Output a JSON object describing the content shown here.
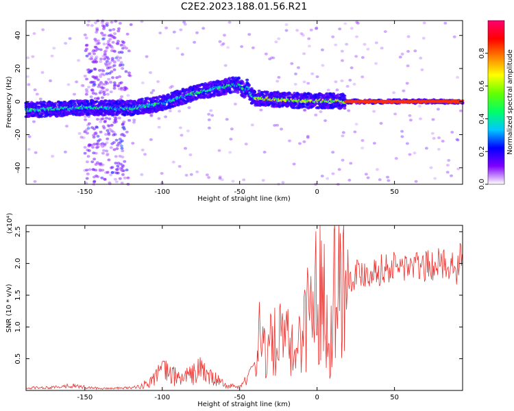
{
  "title": "C2E2.2023.188.01.56.R21",
  "chart_data": [
    {
      "type": "heatmap",
      "title": "",
      "xlabel": "Height of straight line (km)",
      "ylabel": "Frequency (Hz)",
      "xlim": [
        -188,
        94
      ],
      "ylim": [
        -50,
        49
      ],
      "xticks": [
        -150,
        -100,
        -50,
        0,
        50
      ],
      "xtick_labels": [
        "-150",
        "-100",
        "-50",
        "0",
        "50"
      ],
      "yticks": [
        -40,
        -20,
        0,
        20,
        40
      ],
      "ytick_labels": [
        "-40",
        "-20",
        "0",
        "20",
        "40"
      ],
      "colorbar": {
        "label": "Normalized spectral amplitude",
        "range": [
          0,
          1
        ],
        "ticks": [
          0,
          0.2,
          0.4,
          0.6,
          0.8
        ],
        "tick_labels": [
          "0.0",
          "0.2",
          "0.4",
          "0.6",
          "0.8"
        ],
        "colors": [
          "#ffffff",
          "#7f00ff",
          "#0000ff",
          "#00c8ff",
          "#00ff66",
          "#66ff00",
          "#ffff00",
          "#ff8000",
          "#ff0000",
          "#ff0070"
        ]
      },
      "ridge": {
        "x": [
          -188,
          -170,
          -150,
          -130,
          -120,
          -110,
          -100,
          -90,
          -80,
          -70,
          -60,
          -55,
          -50,
          -47,
          -45,
          -42,
          -40,
          -35,
          -30,
          -20,
          -10,
          0,
          10,
          18,
          50,
          94
        ],
        "y": [
          -5,
          -4.5,
          -3.5,
          -4,
          -4,
          -2.5,
          -1,
          2,
          5,
          7,
          9,
          10,
          10,
          6,
          9,
          3,
          2,
          2,
          1.5,
          1,
          0.5,
          0.5,
          0.5,
          0,
          0,
          0
        ]
      },
      "grid": false
    },
    {
      "type": "line",
      "title": "",
      "xlabel": "Height of straight line (km)",
      "ylabel": "SNR (10 * v/v)",
      "y_multiplier": "(x10⁴)",
      "xlim": [
        -188,
        94
      ],
      "ylim": [
        0,
        2.6
      ],
      "xticks": [
        -150,
        -100,
        -50,
        0,
        50
      ],
      "xtick_labels": [
        "-150",
        "-100",
        "-50",
        "0",
        "50"
      ],
      "yticks": [
        0.5,
        1.0,
        1.5,
        2.0,
        2.5
      ],
      "ytick_labels": [
        "0.5",
        "1.0",
        "1.5",
        "2.0",
        "2.5"
      ],
      "line_color": "#e8302c",
      "envelope": {
        "x": [
          -188,
          -170,
          -160,
          -150,
          -140,
          -120,
          -110,
          -102,
          -98,
          -90,
          -80,
          -75,
          -70,
          -60,
          -50,
          -45,
          -40,
          -38,
          -36,
          -33,
          -30,
          -25,
          -20,
          -15,
          -10,
          -7,
          -5,
          -2,
          0,
          5,
          7,
          8,
          10,
          15,
          20,
          25,
          30,
          40,
          50,
          60,
          70,
          80,
          88,
          90,
          92,
          94
        ],
        "y": [
          0.04,
          0.05,
          0.08,
          0.05,
          0.03,
          0.04,
          0.1,
          0.28,
          0.3,
          0.2,
          0.25,
          0.35,
          0.22,
          0.1,
          0.06,
          0.25,
          0.45,
          0.9,
          1.05,
          0.55,
          0.7,
          0.8,
          0.8,
          0.55,
          0.95,
          1.1,
          1.35,
          1.5,
          1.55,
          1.6,
          1.1,
          0.3,
          1.7,
          1.75,
          1.75,
          1.85,
          1.85,
          1.9,
          1.95,
          1.95,
          1.95,
          2.0,
          2.0,
          1.7,
          2.2,
          1.9
        ]
      },
      "grid": false
    }
  ]
}
